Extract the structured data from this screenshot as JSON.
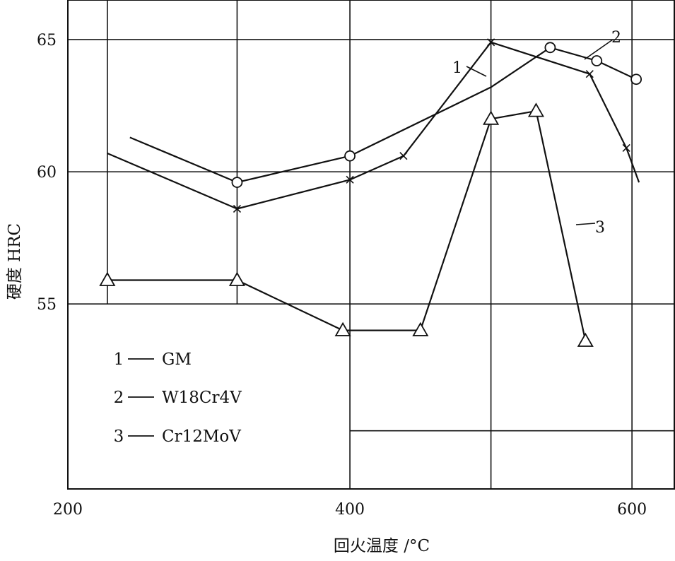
{
  "chart_data": {
    "type": "line",
    "title": "",
    "xlabel": "回火温度 /°C",
    "ylabel": "硬度 HRC",
    "xlim": [
      200,
      630
    ],
    "ylim": [
      48,
      66.5
    ],
    "x_ticks": [
      {
        "value": 200,
        "label": "200"
      },
      {
        "value": 400,
        "label": "400"
      },
      {
        "value": 600,
        "label": "600"
      }
    ],
    "y_ticks": [
      {
        "value": 55,
        "label": "55"
      },
      {
        "value": 60,
        "label": "60"
      },
      {
        "value": 65,
        "label": "65"
      }
    ],
    "grid": true,
    "legend_position": "bottom-left",
    "series": [
      {
        "id": "1",
        "name": "GM",
        "marker": "x",
        "points": [
          [
            228,
            60.7
          ],
          [
            320,
            58.6
          ],
          [
            400,
            59.7
          ],
          [
            438,
            60.6
          ],
          [
            500,
            64.9
          ],
          [
            570,
            63.7
          ],
          [
            596,
            60.9
          ],
          [
            605,
            59.6
          ]
        ],
        "marked": [
          false,
          true,
          true,
          true,
          true,
          true,
          true,
          false
        ]
      },
      {
        "id": "2",
        "name": "W18Cr4V",
        "marker": "circle",
        "points": [
          [
            244,
            61.3
          ],
          [
            320,
            59.6
          ],
          [
            400,
            60.6
          ],
          [
            500,
            63.2
          ],
          [
            542,
            64.7
          ],
          [
            575,
            64.2
          ],
          [
            603,
            63.5
          ]
        ],
        "marked": [
          false,
          true,
          true,
          false,
          true,
          true,
          true
        ]
      },
      {
        "id": "3",
        "name": "Cr12MoV",
        "marker": "triangle",
        "points": [
          [
            228,
            55.9
          ],
          [
            320,
            55.9
          ],
          [
            395,
            54.0
          ],
          [
            450,
            54.0
          ],
          [
            500,
            62.0
          ],
          [
            532,
            62.3
          ],
          [
            567,
            53.6
          ]
        ],
        "marked": [
          true,
          true,
          true,
          true,
          true,
          true,
          true
        ]
      }
    ],
    "legend": [
      {
        "id": "1",
        "dash": "—",
        "name": "GM"
      },
      {
        "id": "2",
        "dash": "—",
        "name": "W18Cr4V"
      },
      {
        "id": "3",
        "dash": "—",
        "name": "Cr12MoV"
      }
    ]
  }
}
